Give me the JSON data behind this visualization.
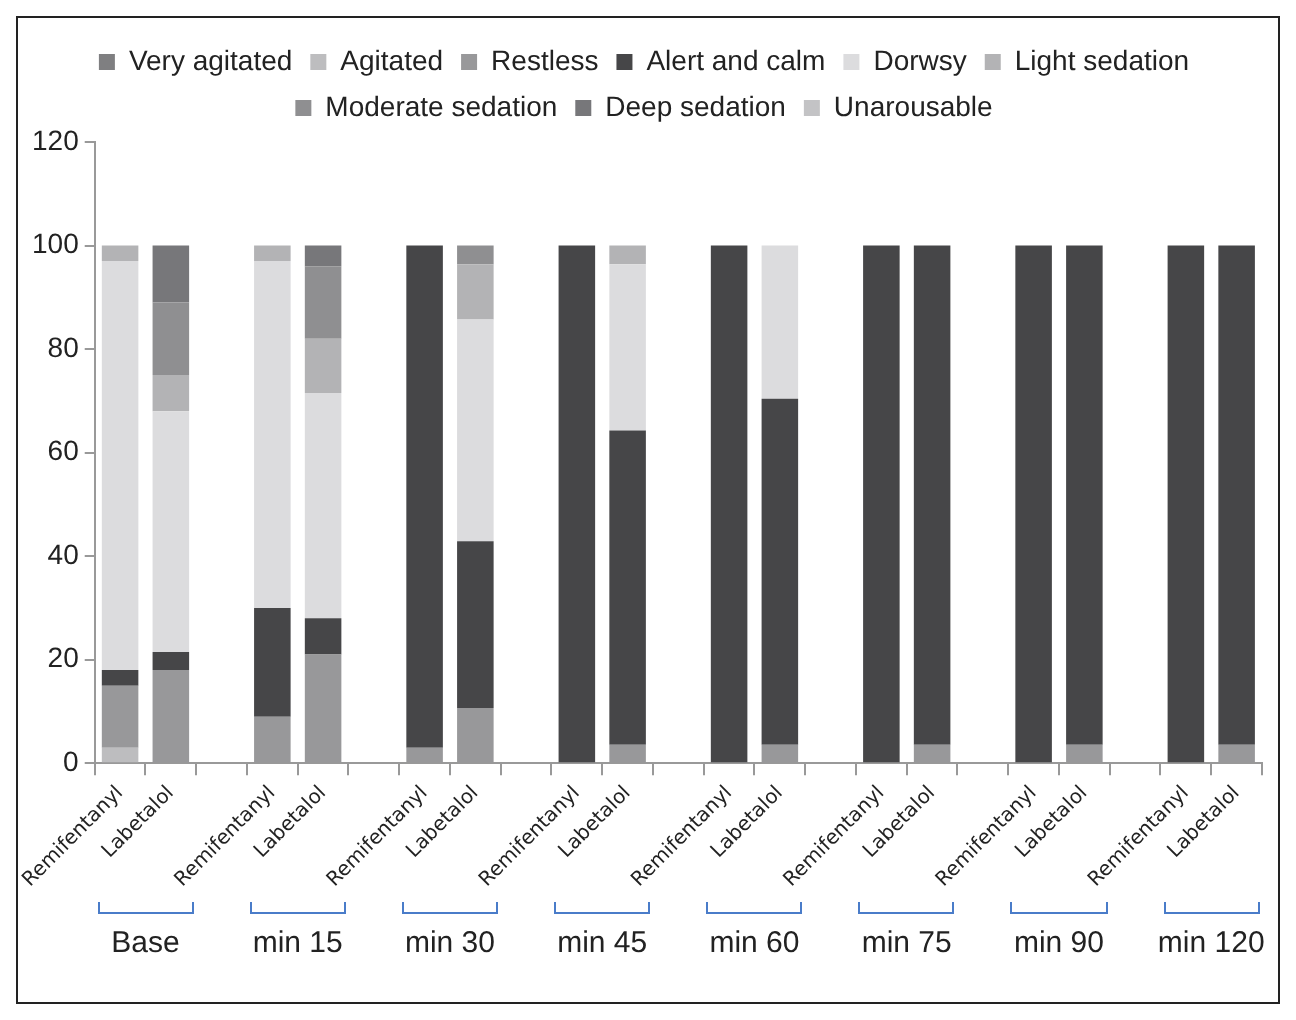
{
  "chart_data": {
    "type": "bar",
    "stacked": true,
    "legend": "top",
    "grid": false,
    "categories": [
      "Remifentanyl",
      "Labetalol",
      null,
      "Remifentanyl",
      "Labetalol",
      null,
      "Remifentanyl",
      "Labetalol",
      null,
      "Remifentanyl",
      "Labetalol",
      null,
      "Remifentanyl",
      "Labetalol",
      null,
      "Remifentanyl",
      "Labetalol",
      null,
      "Remifentanyl",
      "Labetalol",
      null,
      "Remifentanyl",
      "Labetalol"
    ],
    "ylim": [
      0,
      120
    ],
    "yticks": [
      0,
      20,
      40,
      60,
      80,
      100,
      120
    ],
    "series": [
      {
        "name": "Very agitated",
        "color": "#7f7f81",
        "values": [
          0,
          0,
          null,
          0,
          0,
          null,
          0,
          0,
          null,
          0,
          0,
          null,
          0,
          0,
          null,
          0,
          0,
          null,
          0,
          0,
          null,
          0,
          0
        ]
      },
      {
        "name": "Agitated",
        "color": "#bdbdbf",
        "values": [
          3,
          0,
          null,
          0,
          0,
          null,
          0,
          0,
          null,
          0,
          0,
          null,
          0,
          0,
          null,
          0,
          0,
          null,
          0,
          0,
          null,
          0,
          0
        ]
      },
      {
        "name": "Restless",
        "color": "#98989a",
        "values": [
          12,
          18,
          null,
          9,
          21,
          null,
          3,
          10.7,
          null,
          0,
          3.6,
          null,
          0,
          3.6,
          null,
          0,
          3.6,
          null,
          0,
          3.6,
          null,
          0,
          3.6
        ]
      },
      {
        "name": "Alert and calm",
        "color": "#464648",
        "values": [
          3,
          3.5,
          null,
          21,
          7,
          null,
          97,
          32.2,
          null,
          100,
          60.7,
          null,
          100,
          66.8,
          null,
          100,
          96.4,
          null,
          100,
          96.4,
          null,
          100,
          96.4
        ]
      },
      {
        "name": "Dorwsy",
        "color": "#dcdcde",
        "values": [
          79,
          46.5,
          null,
          67,
          43.5,
          null,
          0,
          42.8,
          null,
          0,
          32.1,
          null,
          0,
          29.6,
          null,
          0,
          0,
          null,
          0,
          0,
          null,
          0,
          0
        ]
      },
      {
        "name": "Light sedation",
        "color": "#b3b3b5",
        "values": [
          3,
          7,
          null,
          3,
          10.5,
          null,
          0,
          10.7,
          null,
          0,
          3.6,
          null,
          0,
          0,
          null,
          0,
          0,
          null,
          0,
          0,
          null,
          0,
          0
        ]
      },
      {
        "name": "Moderate sedation",
        "color": "#8f8f91",
        "values": [
          0,
          14,
          null,
          0,
          14,
          null,
          0,
          3.6,
          null,
          0,
          0,
          null,
          0,
          0,
          null,
          0,
          0,
          null,
          0,
          0,
          null,
          0,
          0
        ]
      },
      {
        "name": "Deep sedation",
        "color": "#77777a",
        "values": [
          0,
          11,
          null,
          0,
          4,
          null,
          0,
          0,
          null,
          0,
          0,
          null,
          0,
          0,
          null,
          0,
          0,
          null,
          0,
          0,
          null,
          0,
          0
        ]
      },
      {
        "name": "Unarousable",
        "color": "#c3c3c5",
        "values": [
          0,
          0,
          null,
          0,
          0,
          null,
          0,
          0,
          null,
          0,
          0,
          null,
          0,
          0,
          null,
          0,
          0,
          null,
          0,
          0,
          null,
          0,
          0
        ]
      }
    ],
    "annotations": [
      "Base",
      "min 15",
      "min 30",
      "min 45",
      "min 60",
      "min 75",
      "min 90",
      "min 120"
    ]
  }
}
